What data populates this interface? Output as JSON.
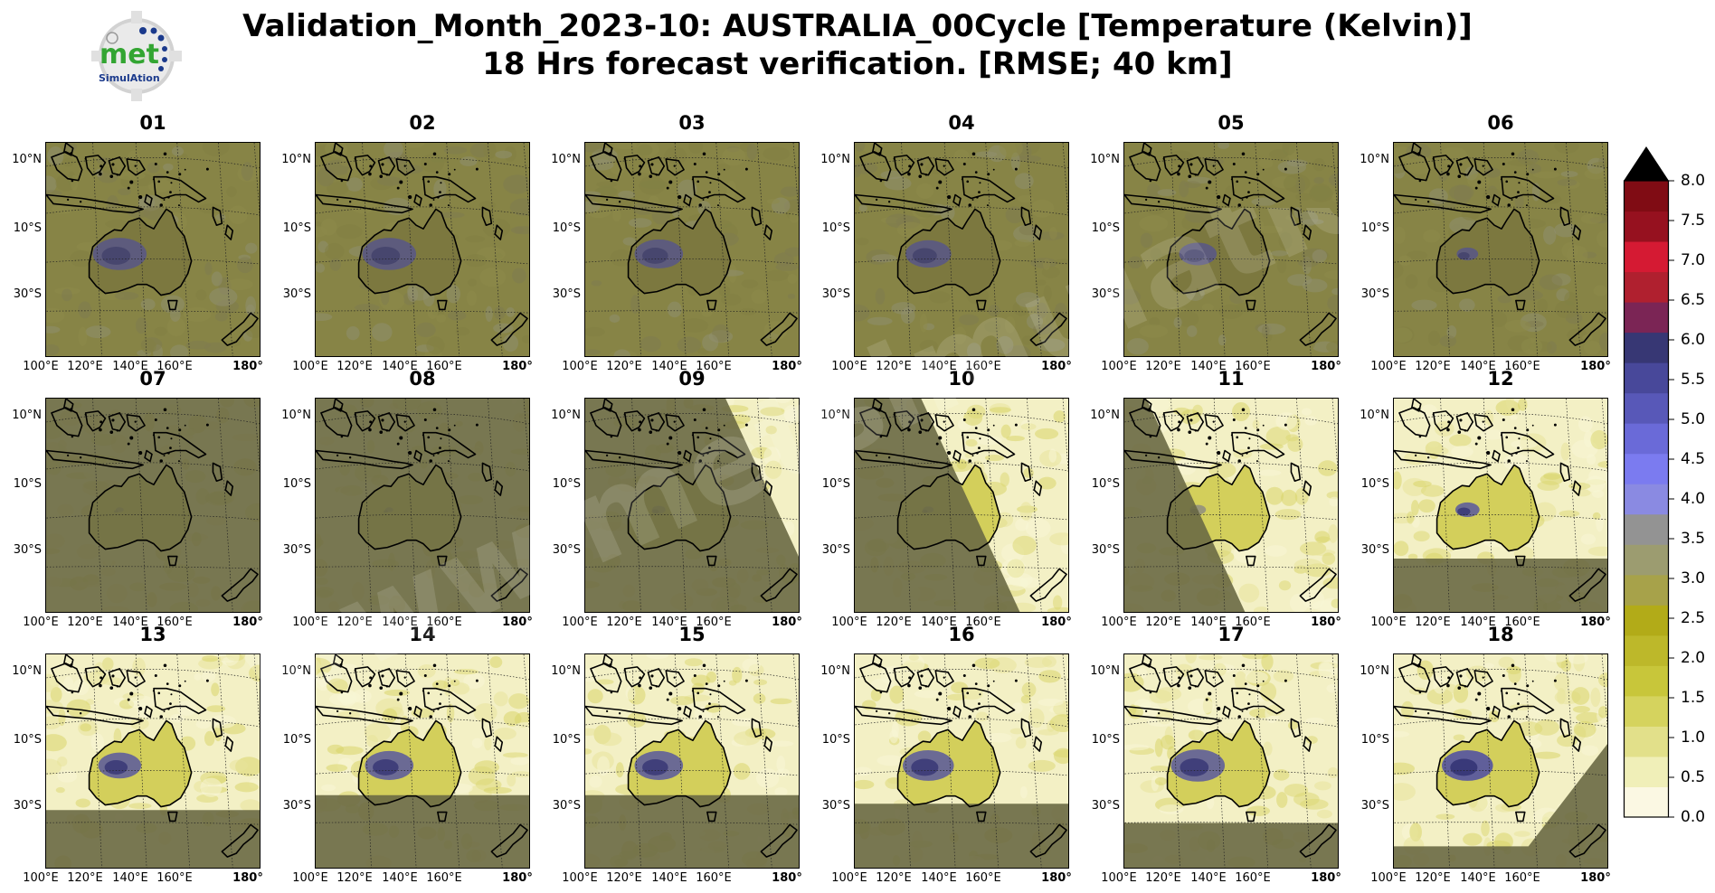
{
  "title": {
    "line1": "Validation_Month_2023-10: AUSTRALIA_00Cycle [Temperature (Kelvin)]",
    "line2": "18 Hrs forecast verification.  [RMSE; 40 km]"
  },
  "logo": {
    "text": "met",
    "subtext": "SimulAtion",
    "accent": "#33a532",
    "dot_color": "#1b3a8c"
  },
  "watermark": "www.metsimulation.com",
  "latitude_labels": [
    "10°N",
    "10°S",
    "30°S"
  ],
  "longitude_labels": [
    "100°E",
    "120°E",
    "140°E",
    "160°E",
    "180°"
  ],
  "panels": [
    {
      "label": "01",
      "stage": "old",
      "coverage": 0.0
    },
    {
      "label": "02",
      "stage": "old",
      "coverage": 0.0
    },
    {
      "label": "03",
      "stage": "old",
      "coverage": 0.0
    },
    {
      "label": "04",
      "stage": "old",
      "coverage": 0.0
    },
    {
      "label": "05",
      "stage": "old",
      "coverage": 0.0
    },
    {
      "label": "06",
      "stage": "old",
      "coverage": 0.0
    },
    {
      "label": "07",
      "stage": "sweep",
      "coverage": 0.1
    },
    {
      "label": "08",
      "stage": "sweep",
      "coverage": 0.3
    },
    {
      "label": "09",
      "stage": "sweep",
      "coverage": 0.55
    },
    {
      "label": "10",
      "stage": "sweep",
      "coverage": 0.8
    },
    {
      "label": "11",
      "stage": "sweep",
      "coverage": 0.95
    },
    {
      "label": "12",
      "stage": "south",
      "coverage": 0.75
    },
    {
      "label": "13",
      "stage": "south",
      "coverage": 0.73
    },
    {
      "label": "14",
      "stage": "south",
      "coverage": 0.66
    },
    {
      "label": "15",
      "stage": "south",
      "coverage": 0.66
    },
    {
      "label": "16",
      "stage": "south",
      "coverage": 0.7
    },
    {
      "label": "17",
      "stage": "south",
      "coverage": 0.79
    },
    {
      "label": "18",
      "stage": "corner",
      "coverage": 0.9
    }
  ],
  "colorbar": {
    "ticks": [
      "0.0",
      "0.5",
      "1.0",
      "1.5",
      "2.0",
      "2.5",
      "3.0",
      "3.5",
      "4.0",
      "4.5",
      "5.0",
      "5.5",
      "6.0",
      "6.5",
      "7.0",
      "7.5",
      "8.0"
    ],
    "min": 0.0,
    "max": 8.0,
    "extend": "max",
    "colors": [
      "#fbf8e3",
      "#f0efb8",
      "#e2e08a",
      "#d5d35e",
      "#c8c63a",
      "#bdb82a",
      "#b2ab18",
      "#a7a24a",
      "#9c9c70",
      "#939393",
      "#8a8ae2",
      "#7b7bf0",
      "#6a6ad8",
      "#5858b8",
      "#48489a",
      "#373774",
      "#7b2555",
      "#b0202f",
      "#d51a33",
      "#96111f",
      "#800c14"
    ],
    "extend_color": "#000000"
  }
}
